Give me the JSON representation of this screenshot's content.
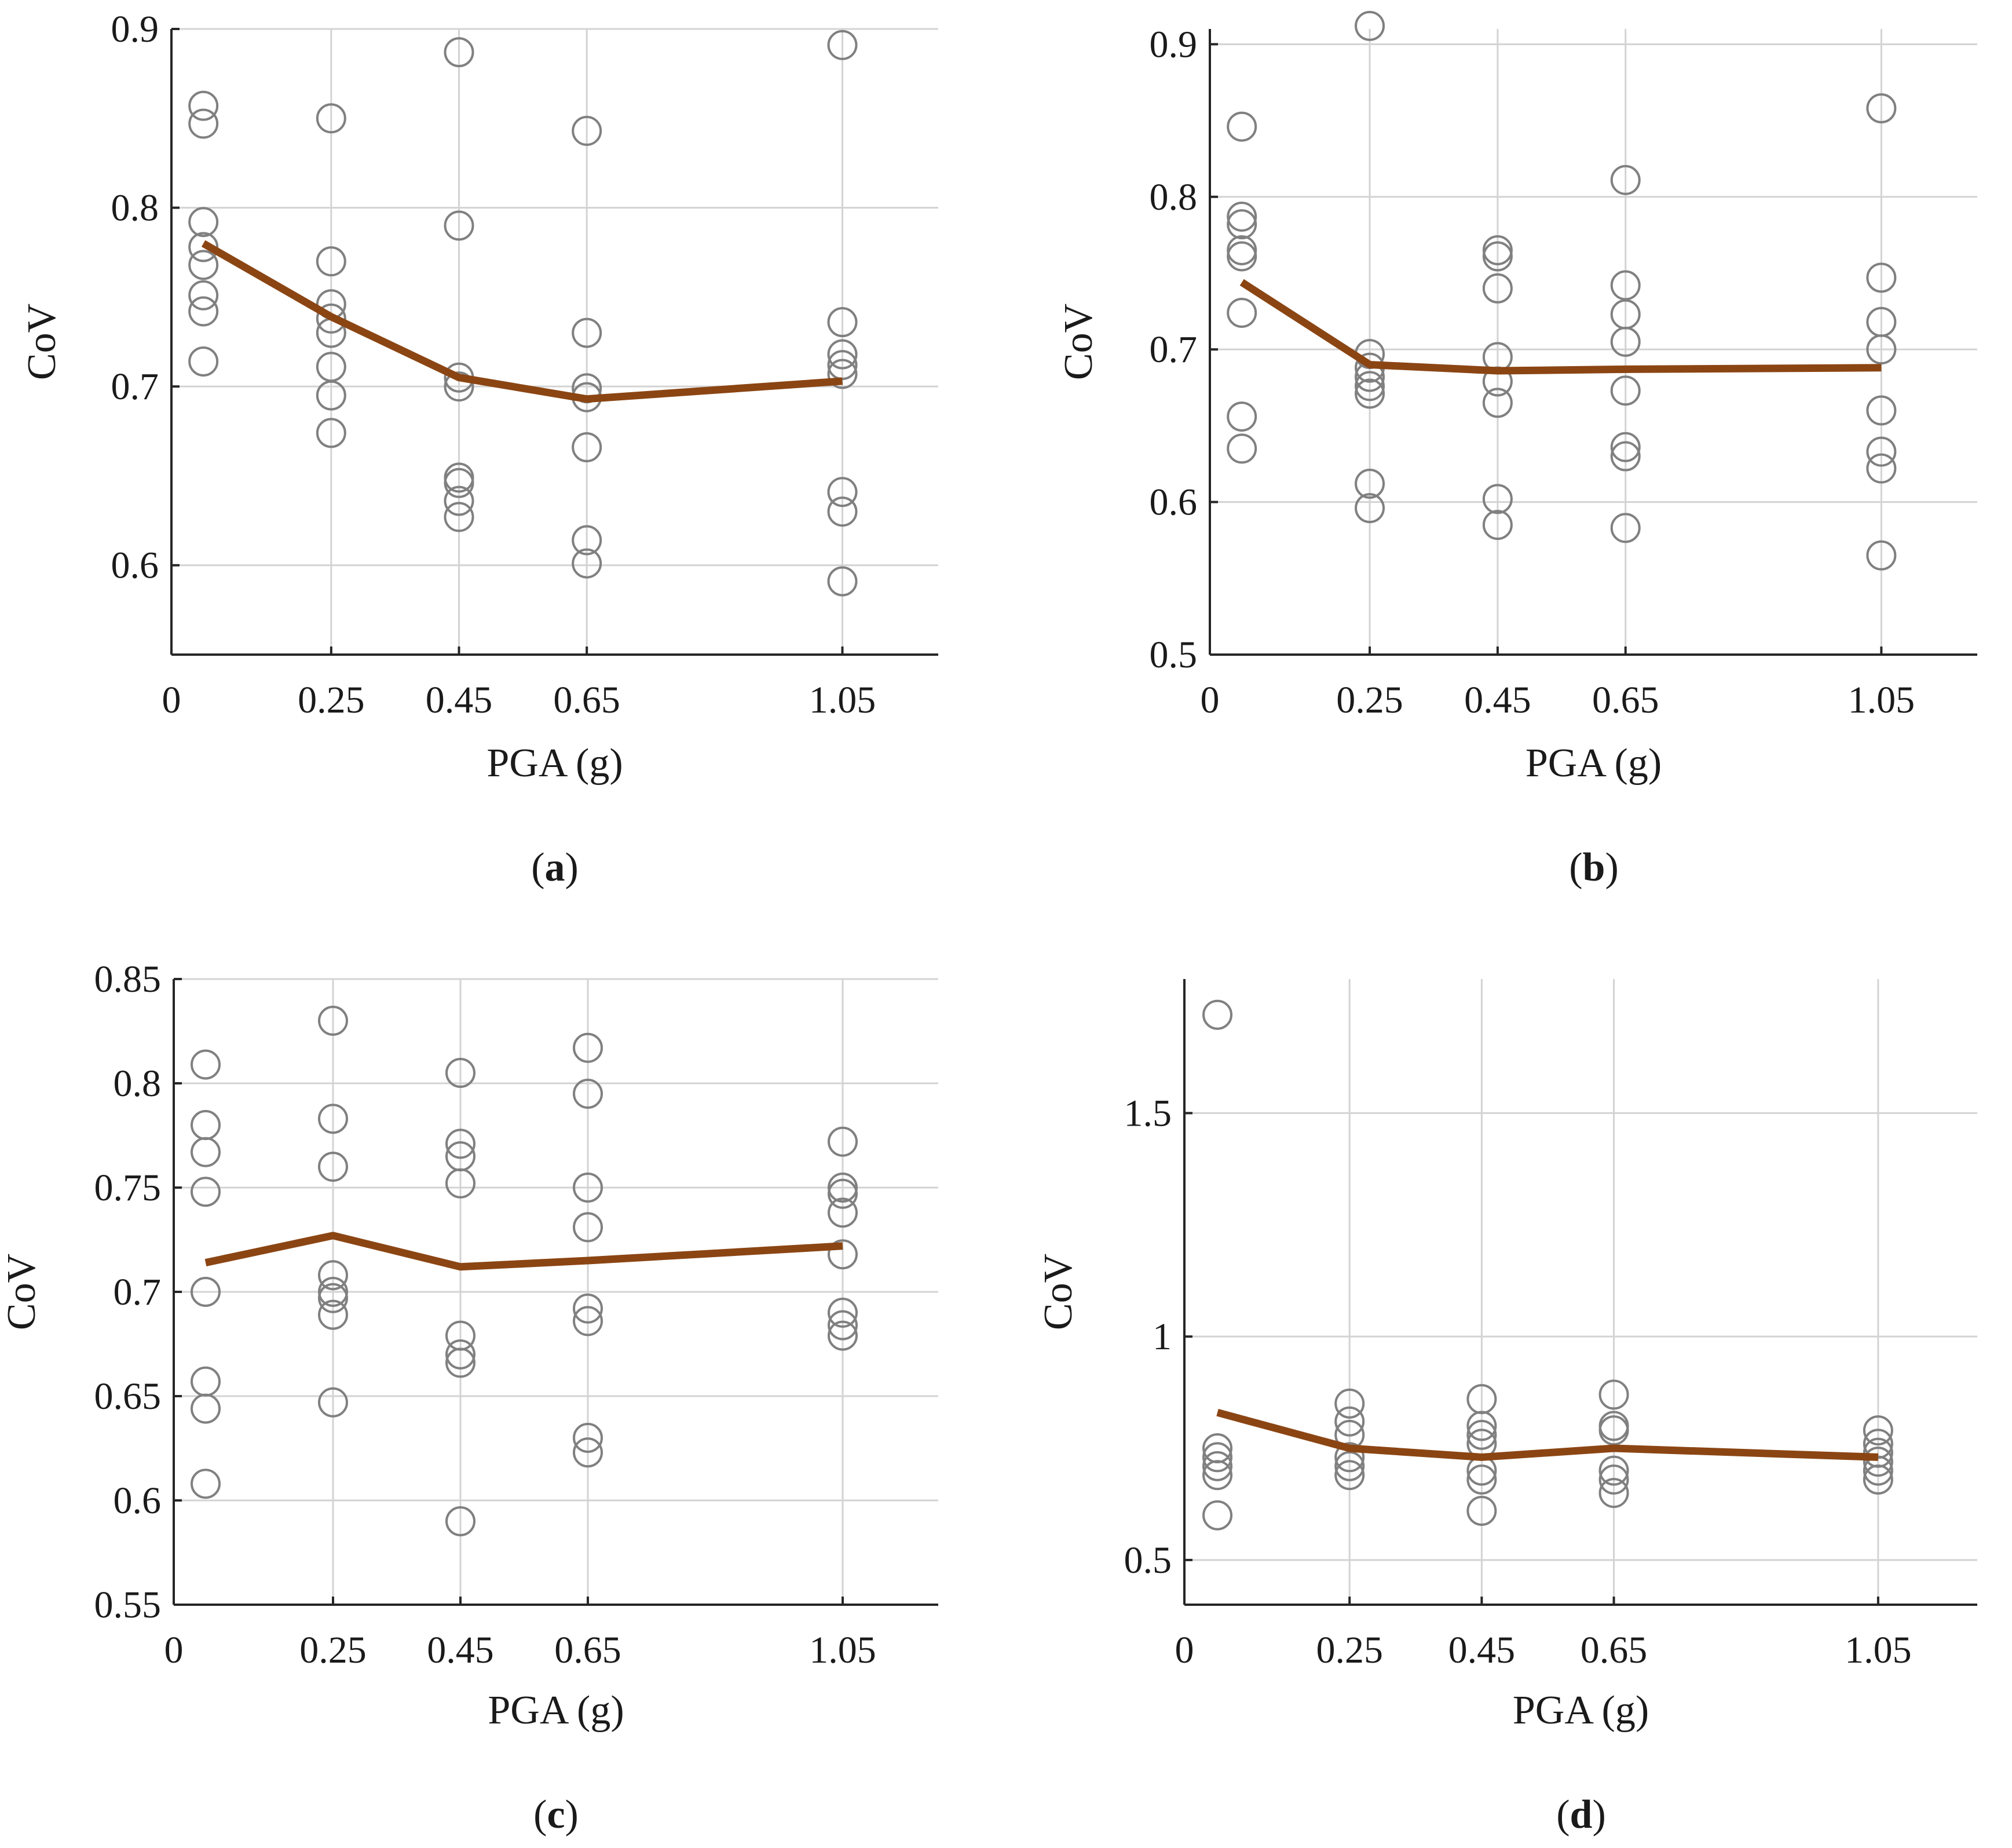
{
  "colors": {
    "mean_line": "#8B4513",
    "marker": "#808080",
    "grid": "#d3d3d3",
    "axis": "#262626"
  },
  "chart_data": [
    {
      "type": "scatter",
      "caption": "(a)",
      "caption_letter": "a",
      "xlabel": "PGA (g)",
      "ylabel": "CoV",
      "xlim": [
        0,
        1.2
      ],
      "ylim": [
        0.55,
        0.9
      ],
      "xticks": [
        0,
        0.25,
        0.45,
        0.65,
        1.05
      ],
      "xtick_labels": [
        "0",
        "0.25",
        "0.45",
        "0.65",
        "1.05"
      ],
      "yticks": [
        0.6,
        0.7,
        0.8,
        0.9
      ],
      "ytick_labels": [
        "0.6",
        "0.7",
        "0.8",
        "0.9"
      ],
      "grid": true,
      "points": [
        {
          "x": 0.05,
          "y": [
            0.857,
            0.847,
            0.792,
            0.778,
            0.768,
            0.751,
            0.742,
            0.714
          ]
        },
        {
          "x": 0.25,
          "y": [
            0.85,
            0.77,
            0.746,
            0.738,
            0.73,
            0.711,
            0.695,
            0.674
          ]
        },
        {
          "x": 0.45,
          "y": [
            0.887,
            0.79,
            0.705,
            0.7,
            0.649,
            0.646,
            0.636,
            0.627
          ]
        },
        {
          "x": 0.65,
          "y": [
            0.843,
            0.73,
            0.699,
            0.694,
            0.666,
            0.614,
            0.601
          ]
        },
        {
          "x": 1.05,
          "y": [
            0.891,
            0.736,
            0.718,
            0.712,
            0.707,
            0.641,
            0.63,
            0.591
          ]
        }
      ],
      "mean_line": {
        "x": [
          0.05,
          0.25,
          0.45,
          0.65,
          1.05
        ],
        "y": [
          0.78,
          0.739,
          0.705,
          0.693,
          0.703
        ]
      }
    },
    {
      "type": "scatter",
      "caption": "(b)",
      "caption_letter": "b",
      "xlabel": "PGA (g)",
      "ylabel": "CoV",
      "xlim": [
        0,
        1.2
      ],
      "ylim": [
        0.5,
        0.91
      ],
      "xticks": [
        0,
        0.25,
        0.45,
        0.65,
        1.05
      ],
      "xtick_labels": [
        "0",
        "0.25",
        "0.45",
        "0.65",
        "1.05"
      ],
      "yticks": [
        0.5,
        0.6,
        0.7,
        0.8,
        0.9
      ],
      "ytick_labels": [
        "0.5",
        "0.6",
        "0.7",
        "0.8",
        "0.9"
      ],
      "grid": true,
      "points": [
        {
          "x": 0.05,
          "y": [
            0.846,
            0.787,
            0.782,
            0.765,
            0.761,
            0.724,
            0.656,
            0.635
          ]
        },
        {
          "x": 0.25,
          "y": [
            0.912,
            0.697,
            0.688,
            0.682,
            0.676,
            0.671,
            0.612,
            0.596
          ]
        },
        {
          "x": 0.45,
          "y": [
            0.765,
            0.761,
            0.74,
            0.695,
            0.679,
            0.665,
            0.602,
            0.585
          ]
        },
        {
          "x": 0.65,
          "y": [
            0.811,
            0.742,
            0.723,
            0.705,
            0.673,
            0.636,
            0.63,
            0.583
          ]
        },
        {
          "x": 1.05,
          "y": [
            0.858,
            0.747,
            0.718,
            0.7,
            0.66,
            0.633,
            0.622,
            0.565
          ]
        }
      ],
      "mean_line": {
        "x": [
          0.05,
          0.25,
          0.45,
          0.65,
          1.05
        ],
        "y": [
          0.744,
          0.69,
          0.686,
          0.687,
          0.688
        ]
      }
    },
    {
      "type": "scatter",
      "caption": "(c)",
      "caption_letter": "c",
      "xlabel": "PGA (g)",
      "ylabel": "CoV",
      "xlim": [
        0,
        1.2
      ],
      "ylim": [
        0.55,
        0.85
      ],
      "xticks": [
        0,
        0.25,
        0.45,
        0.65,
        1.05
      ],
      "xtick_labels": [
        "0",
        "0.25",
        "0.45",
        "0.65",
        "1.05"
      ],
      "yticks": [
        0.55,
        0.6,
        0.65,
        0.7,
        0.75,
        0.8,
        0.85
      ],
      "ytick_labels": [
        "0.55",
        "0.6",
        "0.65",
        "0.7",
        "0.75",
        "0.8",
        "0.85"
      ],
      "grid": true,
      "points": [
        {
          "x": 0.05,
          "y": [
            0.809,
            0.78,
            0.767,
            0.748,
            0.7,
            0.657,
            0.644,
            0.608
          ]
        },
        {
          "x": 0.25,
          "y": [
            0.83,
            0.783,
            0.76,
            0.708,
            0.7,
            0.697,
            0.689,
            0.647
          ]
        },
        {
          "x": 0.45,
          "y": [
            0.805,
            0.771,
            0.765,
            0.752,
            0.679,
            0.67,
            0.666,
            0.59
          ]
        },
        {
          "x": 0.65,
          "y": [
            0.817,
            0.795,
            0.75,
            0.731,
            0.692,
            0.686,
            0.63,
            0.623
          ]
        },
        {
          "x": 1.05,
          "y": [
            0.772,
            0.75,
            0.747,
            0.738,
            0.718,
            0.69,
            0.684,
            0.679
          ]
        }
      ],
      "mean_line": {
        "x": [
          0.05,
          0.25,
          0.45,
          0.65,
          1.05
        ],
        "y": [
          0.714,
          0.727,
          0.712,
          0.715,
          0.722
        ]
      }
    },
    {
      "type": "scatter",
      "caption": "(d)",
      "caption_letter": "d",
      "xlabel": "PGA (g)",
      "ylabel": "CoV",
      "xlim": [
        0,
        1.2
      ],
      "ylim": [
        0.4,
        1.8
      ],
      "xticks": [
        0,
        0.25,
        0.45,
        0.65,
        1.05
      ],
      "xtick_labels": [
        "0",
        "0.25",
        "0.45",
        "0.65",
        "1.05"
      ],
      "yticks": [
        0.5,
        1.0,
        1.5
      ],
      "ytick_labels": [
        "0.5",
        "1",
        "1.5"
      ],
      "grid": true,
      "points": [
        {
          "x": 0.05,
          "y": [
            1.72,
            0.75,
            0.73,
            0.71,
            0.69,
            0.6
          ]
        },
        {
          "x": 0.25,
          "y": [
            0.85,
            0.81,
            0.78,
            0.73,
            0.71,
            0.69
          ]
        },
        {
          "x": 0.45,
          "y": [
            0.86,
            0.8,
            0.78,
            0.76,
            0.7,
            0.68,
            0.61
          ]
        },
        {
          "x": 0.65,
          "y": [
            0.87,
            0.8,
            0.79,
            0.7,
            0.68,
            0.65
          ]
        },
        {
          "x": 1.05,
          "y": [
            0.79,
            0.76,
            0.74,
            0.72,
            0.7,
            0.68
          ]
        }
      ],
      "mean_line": {
        "x": [
          0.05,
          0.25,
          0.45,
          0.65,
          1.05
        ],
        "y": [
          0.83,
          0.75,
          0.73,
          0.75,
          0.73
        ]
      }
    }
  ]
}
